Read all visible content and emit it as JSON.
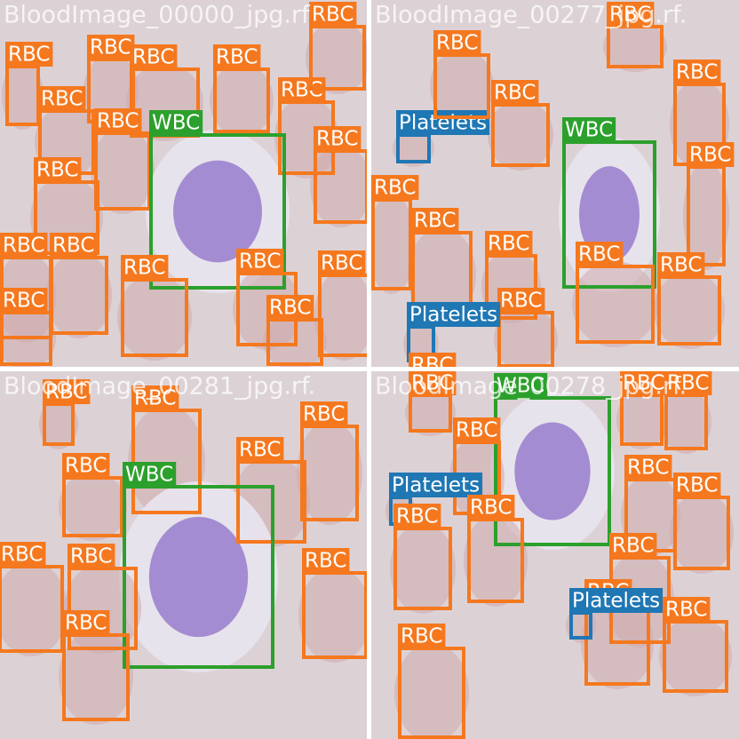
{
  "tiles": [
    {
      "title": "BloodImage_00000_jpg.rf",
      "boxes": [
        {
          "label": "RBC",
          "color": "#f5781e"
        },
        {
          "label": "RBC",
          "color": "#f5781e"
        },
        {
          "label": "RBC",
          "color": "#f5781e"
        },
        {
          "label": "RBC",
          "color": "#f5781e"
        },
        {
          "label": "RBC",
          "color": "#f5781e"
        },
        {
          "label": "RBC",
          "color": "#f5781e"
        },
        {
          "label": "RBC",
          "color": "#f5781e"
        },
        {
          "label": "WBC",
          "color": "#2ca02c"
        },
        {
          "label": "RBC",
          "color": "#f5781e"
        },
        {
          "label": "RBC",
          "color": "#f5781e"
        },
        {
          "label": "RBC",
          "color": "#f5781e"
        },
        {
          "label": "RBC",
          "color": "#f5781e"
        },
        {
          "label": "RBC",
          "color": "#f5781e"
        },
        {
          "label": "RBC",
          "color": "#f5781e"
        },
        {
          "label": "RBC",
          "color": "#f5781e"
        },
        {
          "label": "RBC",
          "color": "#f5781e"
        },
        {
          "label": "RBC",
          "color": "#f5781e"
        },
        {
          "label": "RBC",
          "color": "#f5781e"
        }
      ]
    },
    {
      "title": "BloodImage_00277_jpg.rf.",
      "boxes": [
        {
          "label": "Platelets",
          "color": "#1f77b4"
        },
        {
          "label": "WBC",
          "color": "#2ca02c"
        },
        {
          "label": "RBC",
          "color": "#f5781e"
        },
        {
          "label": "RBC",
          "color": "#f5781e"
        },
        {
          "label": "RBC",
          "color": "#f5781e"
        },
        {
          "label": "RBC",
          "color": "#f5781e"
        },
        {
          "label": "RBC",
          "color": "#f5781e"
        },
        {
          "label": "RBC",
          "color": "#f5781e"
        },
        {
          "label": "RBC",
          "color": "#f5781e"
        },
        {
          "label": "RBC",
          "color": "#f5781e"
        },
        {
          "label": "RBC",
          "color": "#f5781e"
        },
        {
          "label": "RBC",
          "color": "#f5781e"
        },
        {
          "label": "Platelets",
          "color": "#1f77b4"
        },
        {
          "label": "RBC",
          "color": "#f5781e"
        },
        {
          "label": "RBC",
          "color": "#f5781e"
        }
      ]
    },
    {
      "title": "BloodImage_00281_jpg.rf.",
      "boxes": [
        {
          "label": "RBC",
          "color": "#f5781e"
        },
        {
          "label": "RBC",
          "color": "#f5781e"
        },
        {
          "label": "RBC",
          "color": "#f5781e"
        },
        {
          "label": "RBC",
          "color": "#f5781e"
        },
        {
          "label": "RBC",
          "color": "#f5781e"
        },
        {
          "label": "WBC",
          "color": "#2ca02c"
        },
        {
          "label": "RBC",
          "color": "#f5781e"
        },
        {
          "label": "RBC",
          "color": "#f5781e"
        },
        {
          "label": "RBC",
          "color": "#f5781e"
        },
        {
          "label": "RBC",
          "color": "#f5781e"
        }
      ]
    },
    {
      "title": "BloodImage_00278_jpg.rf.",
      "boxes": [
        {
          "label": "RBC",
          "color": "#f5781e"
        },
        {
          "label": "RBC",
          "color": "#f5781e"
        },
        {
          "label": "RBC",
          "color": "#f5781e"
        },
        {
          "label": "WBC",
          "color": "#2ca02c"
        },
        {
          "label": "RBC",
          "color": "#f5781e"
        },
        {
          "label": "Platelets",
          "color": "#1f77b4"
        },
        {
          "label": "RBC",
          "color": "#f5781e"
        },
        {
          "label": "RBC",
          "color": "#f5781e"
        },
        {
          "label": "RBC",
          "color": "#f5781e"
        },
        {
          "label": "RBC",
          "color": "#f5781e"
        },
        {
          "label": "RBC",
          "color": "#f5781e"
        },
        {
          "label": "RBC",
          "color": "#f5781e"
        },
        {
          "label": "Platelets",
          "color": "#1f77b4"
        },
        {
          "label": "RBC",
          "color": "#f5781e"
        },
        {
          "label": "RBC",
          "color": "#f5781e"
        }
      ]
    }
  ]
}
